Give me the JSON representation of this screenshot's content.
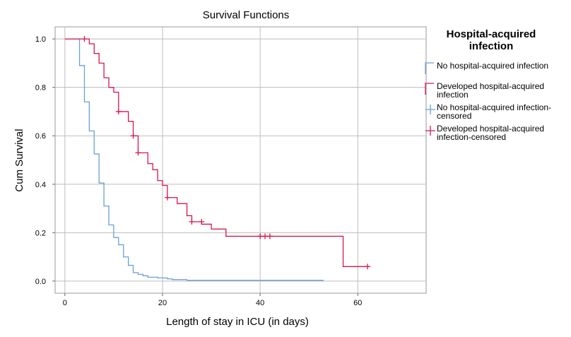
{
  "chart_data": {
    "type": "line",
    "title": "Survival Functions",
    "xlabel": "Length of stay in ICU (in days)",
    "ylabel": "Cum Survival",
    "xlim": [
      -2,
      74
    ],
    "ylim": [
      -0.05,
      1.05
    ],
    "x_ticks": [
      "0",
      "20",
      "40",
      "60"
    ],
    "x_tick_values": [
      0,
      20,
      40,
      60
    ],
    "y_ticks": [
      "0.0",
      "0.2",
      "0.4",
      "0.6",
      "0.8",
      "1.0"
    ],
    "y_tick_values": [
      0,
      0.2,
      0.4,
      0.6,
      0.8,
      1.0
    ],
    "grid": true,
    "legend_position": "right",
    "legend_title": "Hospital-acquired infection",
    "legend_entries": [
      {
        "label": "No hospital-acquired infection",
        "color": "#6a9fd8",
        "kind": "step"
      },
      {
        "label": "Developed hospital-acquired infection",
        "color": "#d8174a",
        "kind": "step"
      },
      {
        "label": "No hospital-acquired infection-censored",
        "color": "#6a9fd8",
        "kind": "censor"
      },
      {
        "label": "Developed hospital-acquired infection-censored",
        "color": "#d8174a",
        "kind": "censor"
      }
    ],
    "series": [
      {
        "name": "No hospital-acquired infection",
        "color": "#6a9fd8",
        "steps": [
          [
            0,
            1.0
          ],
          [
            3,
            0.89
          ],
          [
            4,
            0.74
          ],
          [
            5,
            0.62
          ],
          [
            6,
            0.525
          ],
          [
            7,
            0.405
          ],
          [
            8,
            0.31
          ],
          [
            9,
            0.232
          ],
          [
            10,
            0.18
          ],
          [
            11,
            0.15
          ],
          [
            12,
            0.1
          ],
          [
            13,
            0.065
          ],
          [
            14,
            0.035
          ],
          [
            15,
            0.028
          ],
          [
            16,
            0.022
          ],
          [
            17,
            0.016
          ],
          [
            19,
            0.013
          ],
          [
            21,
            0.009
          ],
          [
            22,
            0.006
          ],
          [
            25,
            0.003
          ],
          [
            53,
            0.003
          ]
        ],
        "censored": []
      },
      {
        "name": "Developed hospital-acquired infection",
        "color": "#d8174a",
        "steps": [
          [
            0,
            1.0
          ],
          [
            5,
            0.98
          ],
          [
            6,
            0.94
          ],
          [
            7,
            0.9
          ],
          [
            8,
            0.84
          ],
          [
            9,
            0.8
          ],
          [
            10,
            0.78
          ],
          [
            11,
            0.7
          ],
          [
            13,
            0.66
          ],
          [
            14,
            0.6
          ],
          [
            15,
            0.53
          ],
          [
            17,
            0.485
          ],
          [
            18,
            0.46
          ],
          [
            19,
            0.415
          ],
          [
            20,
            0.395
          ],
          [
            21,
            0.345
          ],
          [
            23,
            0.32
          ],
          [
            25,
            0.27
          ],
          [
            26,
            0.245
          ],
          [
            28,
            0.235
          ],
          [
            30,
            0.215
          ],
          [
            33,
            0.185
          ],
          [
            57,
            0.06
          ],
          [
            62,
            0.06
          ]
        ],
        "censored": [
          [
            4,
            1.0
          ],
          [
            11,
            0.7
          ],
          [
            14,
            0.6
          ],
          [
            15,
            0.53
          ],
          [
            21,
            0.345
          ],
          [
            26,
            0.245
          ],
          [
            28,
            0.245
          ],
          [
            40,
            0.185
          ],
          [
            41,
            0.185
          ],
          [
            42,
            0.185
          ],
          [
            62,
            0.06
          ]
        ]
      }
    ]
  }
}
